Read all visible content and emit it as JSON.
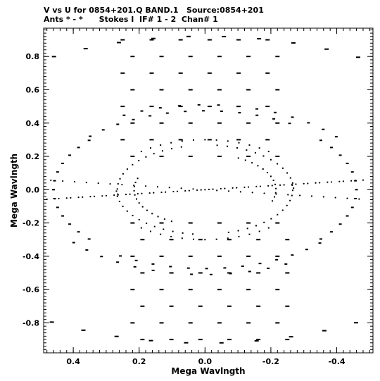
{
  "header": {
    "line1": "V vs U for 0854+201.Q BAND.1   Source:0854+201",
    "line2": "Ants * - *      Stokes I  IF# 1 - 2  Chan# 1"
  },
  "chart_data": {
    "type": "scatter",
    "xlabel": "Mega Wavlngth",
    "ylabel": "Mega Wavlngth",
    "xlim": [
      0.49,
      -0.51
    ],
    "ylim": [
      -0.98,
      0.97
    ],
    "x_ticks": [
      0.4,
      0.2,
      0.0,
      -0.2,
      -0.4
    ],
    "x_tick_labels": [
      "0.4",
      "0.2",
      "0.0",
      "-0.2",
      "-0.4"
    ],
    "y_ticks": [
      0.8,
      0.6,
      0.4,
      0.2,
      0.0,
      -0.2,
      -0.4,
      -0.6,
      -0.8
    ],
    "y_tick_labels": [
      "0.8",
      "0.6",
      "0.4",
      "0.2",
      "0.0",
      "-0.2",
      "-0.4",
      "-0.6",
      "-0.8"
    ],
    "grid": false,
    "marker_color": "#000000",
    "description_arms": [
      {
        "u": 0.05,
        "v": 0.92
      },
      {
        "u": 0.06,
        "v": 0.47
      },
      {
        "u": 0.22,
        "v": 0.15
      },
      {
        "u": 0.46,
        "v": 0.0
      },
      {
        "u": 0.2,
        "v": -0.08
      },
      {
        "u": -0.1,
        "v": 0.5
      },
      {
        "u": -0.2,
        "v": 0.18
      },
      {
        "u": 0.0,
        "v": 0.3
      }
    ]
  }
}
